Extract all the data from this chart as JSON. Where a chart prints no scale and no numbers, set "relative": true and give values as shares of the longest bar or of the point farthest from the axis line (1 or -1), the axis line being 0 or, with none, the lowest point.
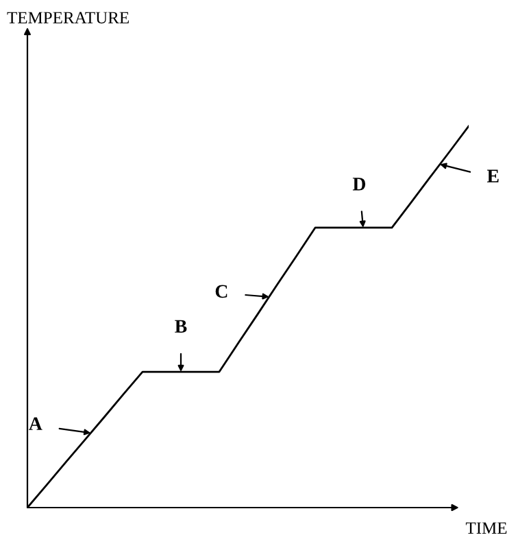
{
  "chart_data": {
    "type": "line",
    "relative": true,
    "xlabel": "TIME",
    "categories": [
      null,
      null,
      null,
      null,
      null,
      null,
      null,
      null,
      null,
      null,
      null,
      null,
      null,
      null,
      null,
      null,
      null,
      null,
      null,
      null,
      null,
      null,
      null,
      null
    ],
    "series": [
      {
        "color": "#000000",
        "values": [
          0,
          0.059,
          0.119,
          0.178,
          0.237,
          0.297,
          0.356,
          0.356,
          0.356,
          0.356,
          0.356,
          0.432,
          0.507,
          0.583,
          0.658,
          0.734,
          0.734,
          0.734,
          0.734,
          0.734,
          0.8,
          0.867,
          0.933,
          1.0
        ]
      }
    ],
    "annotations": [
      "TEMPERATURE",
      "A",
      "B",
      "C",
      "D",
      "E"
    ],
    "marker": "none",
    "line_style": "solid"
  }
}
